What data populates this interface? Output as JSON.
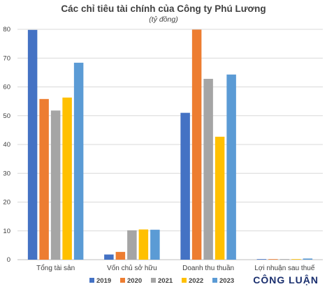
{
  "chart_data": {
    "type": "bar",
    "title": "Các chỉ tiêu tài chính của Công ty Phú Lương",
    "subtitle": "(tỷ đồng)",
    "categories": [
      "Tổng tài sản",
      "Vốn chủ sở hữu",
      "Doanh thu thuần",
      "Lợi nhuận sau thuế"
    ],
    "series": [
      {
        "name": "2019",
        "color": "#4472c4",
        "values": [
          79.8,
          1.8,
          51.0,
          0.2
        ]
      },
      {
        "name": "2020",
        "color": "#ed7d31",
        "values": [
          55.8,
          2.7,
          79.9,
          0.2
        ]
      },
      {
        "name": "2021",
        "color": "#a5a5a5",
        "values": [
          51.8,
          10.2,
          62.8,
          0.2
        ]
      },
      {
        "name": "2022",
        "color": "#ffc000",
        "values": [
          56.3,
          10.5,
          42.7,
          0.2
        ]
      },
      {
        "name": "2023",
        "color": "#5b9bd5",
        "values": [
          68.4,
          10.4,
          64.3,
          0.4
        ]
      }
    ],
    "yticks": [
      0,
      10,
      20,
      30,
      40,
      50,
      60,
      70,
      80
    ],
    "ylim": [
      0,
      80
    ],
    "grid": true,
    "legend_position": "bottom"
  },
  "watermark": {
    "text": "CÔNG LUẬN"
  }
}
